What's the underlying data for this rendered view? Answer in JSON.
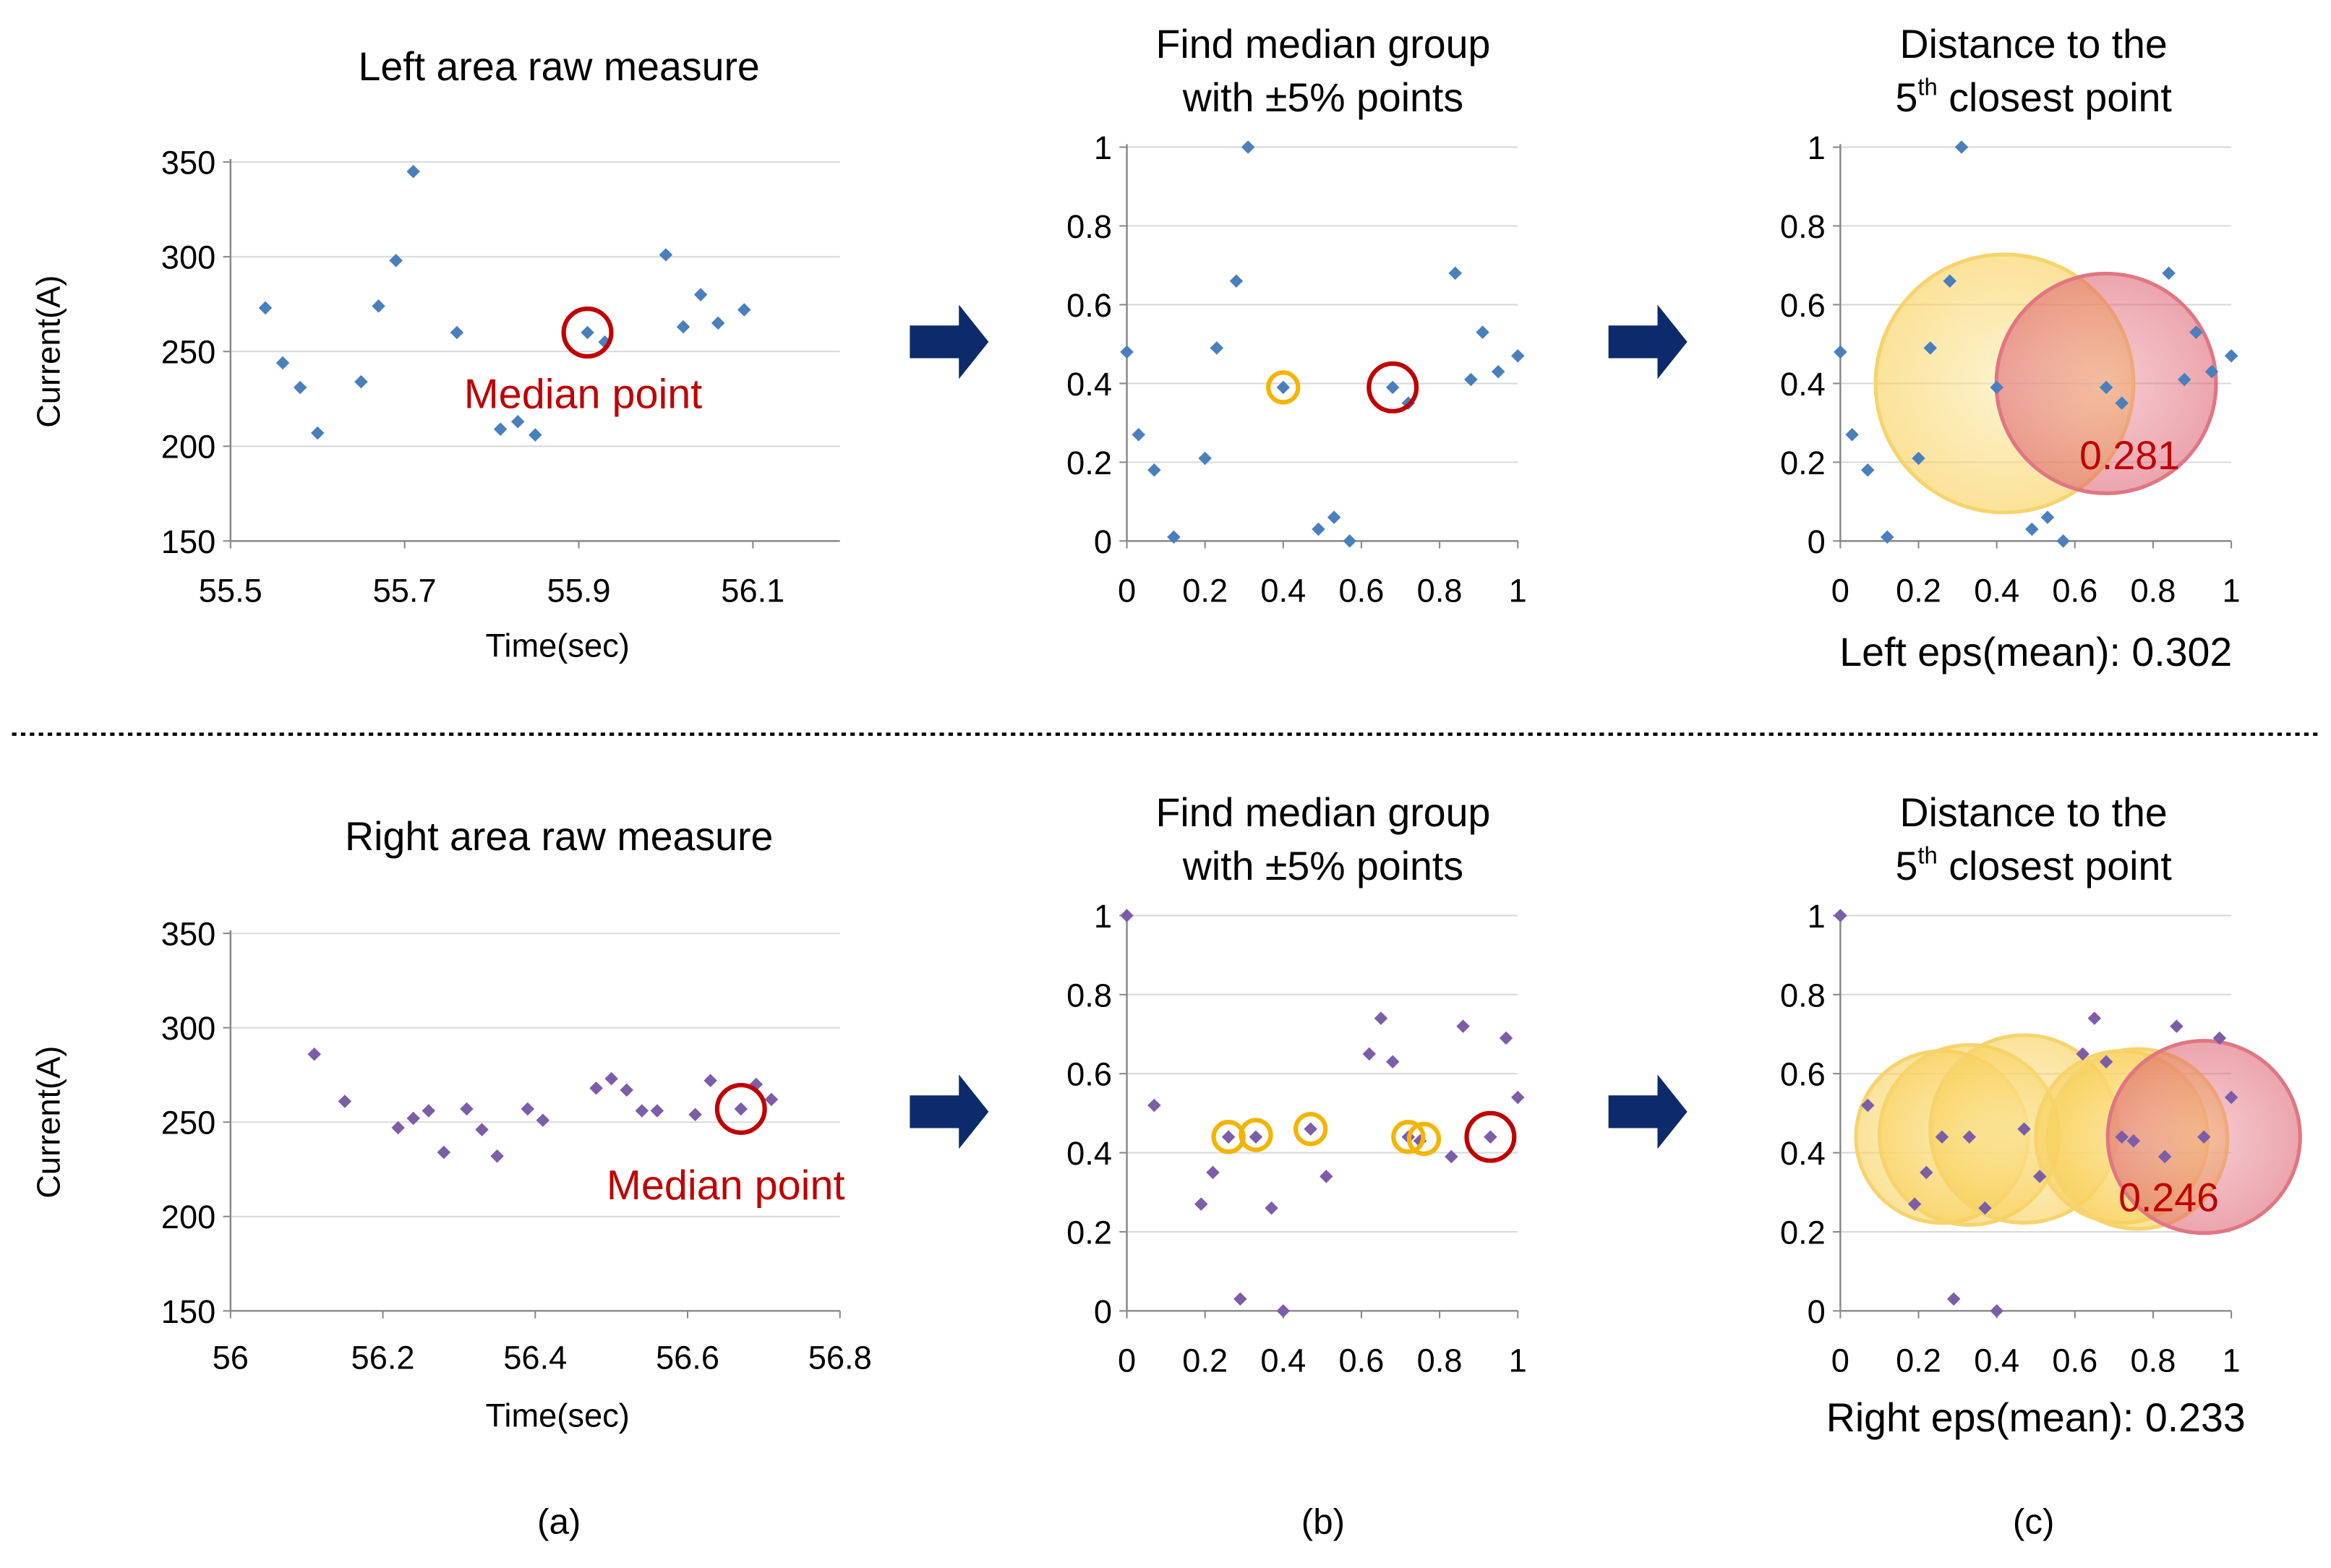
{
  "colors": {
    "blue_marker": "#4a7fbd",
    "purple_marker": "#7b5ea7",
    "red": "#c00000",
    "orange": "#f4b400",
    "grid": "#d9d9d9",
    "axis": "#888888",
    "arrow": "#0d2a6b",
    "circle_yellow": "#f9d978",
    "circle_red": "#e27d88"
  },
  "panel_labels": [
    "(a)",
    "(b)",
    "(c)"
  ],
  "chart_data": [
    {
      "id": "top-raw",
      "type": "scatter",
      "title": [
        "Left area raw measure"
      ],
      "xlabel": "Time(sec)",
      "ylabel": "Current(A)",
      "xlim": [
        55.5,
        56.2
      ],
      "ylim": [
        150,
        350
      ],
      "xticks": [
        "55.5",
        "55.7",
        "55.9",
        "56.1"
      ],
      "xtick_values": [
        55.5,
        55.7,
        55.9,
        56.1
      ],
      "yticks": [
        "150",
        "200",
        "250",
        "300",
        "350"
      ],
      "ytick_values": [
        150,
        200,
        250,
        300,
        350
      ],
      "marker_color": "#4a7fbd",
      "x": [
        55.54,
        55.56,
        55.58,
        55.6,
        55.65,
        55.67,
        55.69,
        55.71,
        55.76,
        55.81,
        55.83,
        55.85,
        55.91,
        55.93,
        56.0,
        56.02,
        56.04,
        56.06,
        56.09
      ],
      "y": [
        273,
        244,
        231,
        207,
        234,
        274,
        298,
        345,
        260,
        209,
        213,
        206,
        260,
        255,
        301,
        263,
        280,
        265,
        272
      ],
      "markers": [
        {
          "type": "red-circle",
          "x": 55.91,
          "y": 260
        }
      ],
      "annotation": {
        "text": "Median point",
        "x": 55.905,
        "y": 228
      }
    },
    {
      "id": "top-norm",
      "type": "scatter",
      "title": [
        "Find median group",
        "with ±5% points"
      ],
      "xlim": [
        0,
        1
      ],
      "ylim": [
        0,
        1
      ],
      "xticks": [
        "0",
        "0.2",
        "0.4",
        "0.6",
        "0.8",
        "1"
      ],
      "xtick_values": [
        0,
        0.2,
        0.4,
        0.6,
        0.8,
        1
      ],
      "yticks": [
        "0",
        "0.2",
        "0.4",
        "0.6",
        "0.8",
        "1"
      ],
      "ytick_values": [
        0,
        0.2,
        0.4,
        0.6,
        0.8,
        1
      ],
      "marker_color": "#4a7fbd",
      "x": [
        0.0,
        0.03,
        0.07,
        0.12,
        0.2,
        0.23,
        0.28,
        0.31,
        0.4,
        0.49,
        0.53,
        0.57,
        0.68,
        0.72,
        0.84,
        0.88,
        0.91,
        0.95,
        1.0
      ],
      "y": [
        0.48,
        0.27,
        0.18,
        0.01,
        0.21,
        0.49,
        0.66,
        1.0,
        0.39,
        0.03,
        0.06,
        0.0,
        0.39,
        0.35,
        0.68,
        0.41,
        0.53,
        0.43,
        0.47
      ],
      "markers": [
        {
          "type": "orange-circle",
          "x": 0.4,
          "y": 0.39
        },
        {
          "type": "red-circle",
          "x": 0.68,
          "y": 0.39
        }
      ]
    },
    {
      "id": "top-dist",
      "type": "scatter",
      "title": [
        "Distance to the",
        "5",
        "th",
        " closest point"
      ],
      "xlim": [
        0,
        1
      ],
      "ylim": [
        0,
        1
      ],
      "xticks": [
        "0",
        "0.2",
        "0.4",
        "0.6",
        "0.8",
        "1"
      ],
      "xtick_values": [
        0,
        0.2,
        0.4,
        0.6,
        0.8,
        1
      ],
      "yticks": [
        "0",
        "0.2",
        "0.4",
        "0.6",
        "0.8",
        "1"
      ],
      "ytick_values": [
        0,
        0.2,
        0.4,
        0.6,
        0.8,
        1
      ],
      "marker_color": "#4a7fbd",
      "x": [
        0.0,
        0.03,
        0.07,
        0.12,
        0.2,
        0.23,
        0.28,
        0.31,
        0.4,
        0.49,
        0.53,
        0.57,
        0.68,
        0.72,
        0.84,
        0.88,
        0.91,
        0.95,
        1.0
      ],
      "y": [
        0.48,
        0.27,
        0.18,
        0.01,
        0.21,
        0.49,
        0.66,
        1.0,
        0.39,
        0.03,
        0.06,
        0.0,
        0.39,
        0.35,
        0.68,
        0.41,
        0.53,
        0.43,
        0.47
      ],
      "circles": [
        {
          "color": "yellow",
          "cx": 0.42,
          "cy": 0.4,
          "r": 0.33
        },
        {
          "color": "red",
          "cx": 0.68,
          "cy": 0.4,
          "r": 0.281
        }
      ],
      "annotation": {
        "text": "0.281",
        "x": 0.74,
        "y": 0.22
      },
      "caption": "Left eps(mean): 0.302"
    },
    {
      "id": "bot-raw",
      "type": "scatter",
      "title": [
        "Right area raw measure"
      ],
      "xlabel": "Time(sec)",
      "ylabel": "Current(A)",
      "xlim": [
        56,
        56.8
      ],
      "ylim": [
        150,
        350
      ],
      "xticks": [
        "56",
        "56.2",
        "56.4",
        "56.6",
        "56.8"
      ],
      "xtick_values": [
        56,
        56.2,
        56.4,
        56.6,
        56.8
      ],
      "yticks": [
        "150",
        "200",
        "250",
        "300",
        "350"
      ],
      "ytick_values": [
        150,
        200,
        250,
        300,
        350
      ],
      "marker_color": "#7b5ea7",
      "x": [
        56.11,
        56.15,
        56.22,
        56.24,
        56.26,
        56.28,
        56.31,
        56.33,
        56.35,
        56.39,
        56.41,
        56.48,
        56.5,
        56.52,
        56.54,
        56.56,
        56.61,
        56.63,
        56.67,
        56.69,
        56.71
      ],
      "y": [
        286,
        261,
        247,
        252,
        256,
        234,
        257,
        246,
        232,
        257,
        251,
        268,
        273,
        267,
        256,
        256,
        254,
        272,
        257,
        270,
        262
      ],
      "markers": [
        {
          "type": "red-circle",
          "x": 56.67,
          "y": 257
        }
      ],
      "annotation": {
        "text": "Median point",
        "x": 56.65,
        "y": 217
      }
    },
    {
      "id": "bot-norm",
      "type": "scatter",
      "title": [
        "Find median group",
        "with ±5% points"
      ],
      "xlim": [
        0,
        1
      ],
      "ylim": [
        0,
        1
      ],
      "xticks": [
        "0",
        "0.2",
        "0.4",
        "0.6",
        "0.8",
        "1"
      ],
      "xtick_values": [
        0,
        0.2,
        0.4,
        0.6,
        0.8,
        1
      ],
      "yticks": [
        "0",
        "0.2",
        "0.4",
        "0.6",
        "0.8",
        "1"
      ],
      "ytick_values": [
        0,
        0.2,
        0.4,
        0.6,
        0.8,
        1
      ],
      "marker_color": "#7b5ea7",
      "x": [
        0.0,
        0.07,
        0.19,
        0.22,
        0.26,
        0.29,
        0.33,
        0.37,
        0.4,
        0.47,
        0.51,
        0.62,
        0.65,
        0.68,
        0.72,
        0.75,
        0.83,
        0.86,
        0.93,
        0.97,
        1.0
      ],
      "y": [
        1.0,
        0.52,
        0.27,
        0.35,
        0.44,
        0.03,
        0.44,
        0.26,
        0.0,
        0.46,
        0.34,
        0.65,
        0.74,
        0.63,
        0.44,
        0.43,
        0.39,
        0.72,
        0.44,
        0.69,
        0.54
      ],
      "markers": [
        {
          "type": "orange-circle",
          "x": 0.26,
          "y": 0.44
        },
        {
          "type": "orange-circle",
          "x": 0.33,
          "y": 0.445
        },
        {
          "type": "orange-circle",
          "x": 0.47,
          "y": 0.46
        },
        {
          "type": "orange-circle",
          "x": 0.72,
          "y": 0.44
        },
        {
          "type": "orange-circle",
          "x": 0.76,
          "y": 0.435
        },
        {
          "type": "red-circle",
          "x": 0.93,
          "y": 0.44
        }
      ]
    },
    {
      "id": "bot-dist",
      "type": "scatter",
      "title": [
        "Distance to the",
        "5",
        "th",
        " closest point"
      ],
      "xlim": [
        0,
        1
      ],
      "ylim": [
        0,
        1
      ],
      "xticks": [
        "0",
        "0.2",
        "0.4",
        "0.6",
        "0.8",
        "1"
      ],
      "xtick_values": [
        0,
        0.2,
        0.4,
        0.6,
        0.8,
        1
      ],
      "yticks": [
        "0",
        "0.2",
        "0.4",
        "0.6",
        "0.8",
        "1"
      ],
      "ytick_values": [
        0,
        0.2,
        0.4,
        0.6,
        0.8,
        1
      ],
      "marker_color": "#7b5ea7",
      "x": [
        0.0,
        0.07,
        0.19,
        0.22,
        0.26,
        0.29,
        0.33,
        0.37,
        0.4,
        0.47,
        0.51,
        0.62,
        0.65,
        0.68,
        0.72,
        0.75,
        0.83,
        0.86,
        0.93,
        0.97,
        1.0
      ],
      "y": [
        1.0,
        0.52,
        0.27,
        0.35,
        0.44,
        0.03,
        0.44,
        0.26,
        0.0,
        0.46,
        0.34,
        0.65,
        0.74,
        0.63,
        0.44,
        0.43,
        0.39,
        0.72,
        0.44,
        0.69,
        0.54
      ],
      "circles": [
        {
          "color": "yellow",
          "cx": 0.26,
          "cy": 0.44,
          "r": 0.22
        },
        {
          "color": "yellow",
          "cx": 0.33,
          "cy": 0.445,
          "r": 0.23
        },
        {
          "color": "yellow",
          "cx": 0.47,
          "cy": 0.46,
          "r": 0.24
        },
        {
          "color": "yellow",
          "cx": 0.72,
          "cy": 0.44,
          "r": 0.22
        },
        {
          "color": "yellow",
          "cx": 0.76,
          "cy": 0.435,
          "r": 0.23
        },
        {
          "color": "red",
          "cx": 0.93,
          "cy": 0.44,
          "r": 0.246
        }
      ],
      "annotation": {
        "text": "0.246",
        "x": 0.84,
        "y": 0.29
      },
      "caption": "Right eps(mean): 0.233"
    }
  ]
}
